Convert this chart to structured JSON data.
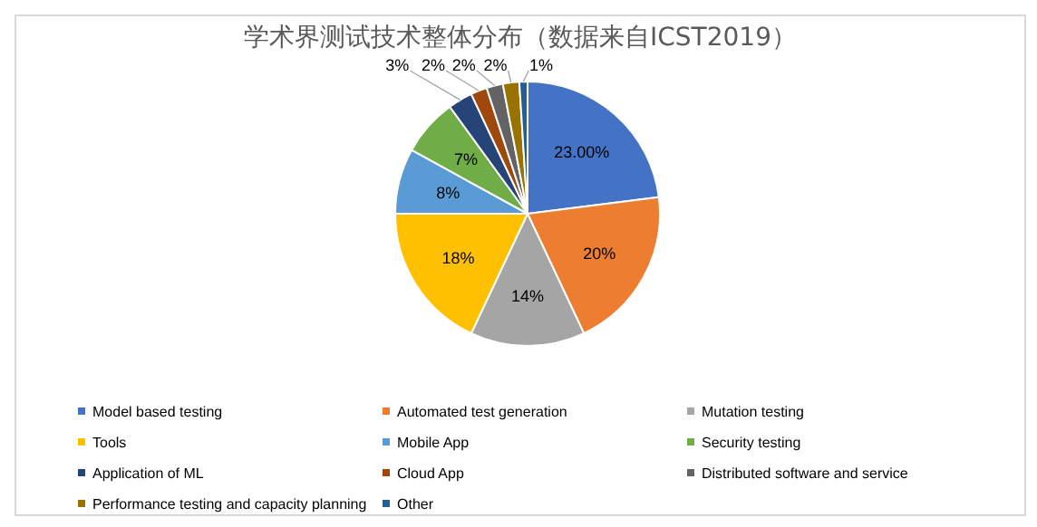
{
  "chart_data": {
    "type": "pie",
    "title": "学术界测试技术整体分布（数据来自ICST2019）",
    "categories": [
      "Model based testing",
      "Automated test generation",
      "Mutation testing",
      "Tools",
      "Mobile App",
      "Security testing",
      "Application of ML",
      "Cloud App",
      "Distributed software and service",
      "Performance testing and capacity planning",
      "Other"
    ],
    "values": [
      23,
      20,
      14,
      18,
      8,
      7,
      3,
      2,
      2,
      2,
      1
    ],
    "value_labels": [
      "23.00%",
      "20%",
      "14%",
      "18%",
      "8%",
      "7%",
      "3%",
      "2%",
      "2%",
      "2%",
      "1%"
    ],
    "colors": [
      "#4472c4",
      "#ed7d31",
      "#a5a5a5",
      "#ffc000",
      "#5b9bd5",
      "#70ad47",
      "#264478",
      "#9e480e",
      "#636363",
      "#997300",
      "#255e91"
    ],
    "legend": "bottom"
  }
}
